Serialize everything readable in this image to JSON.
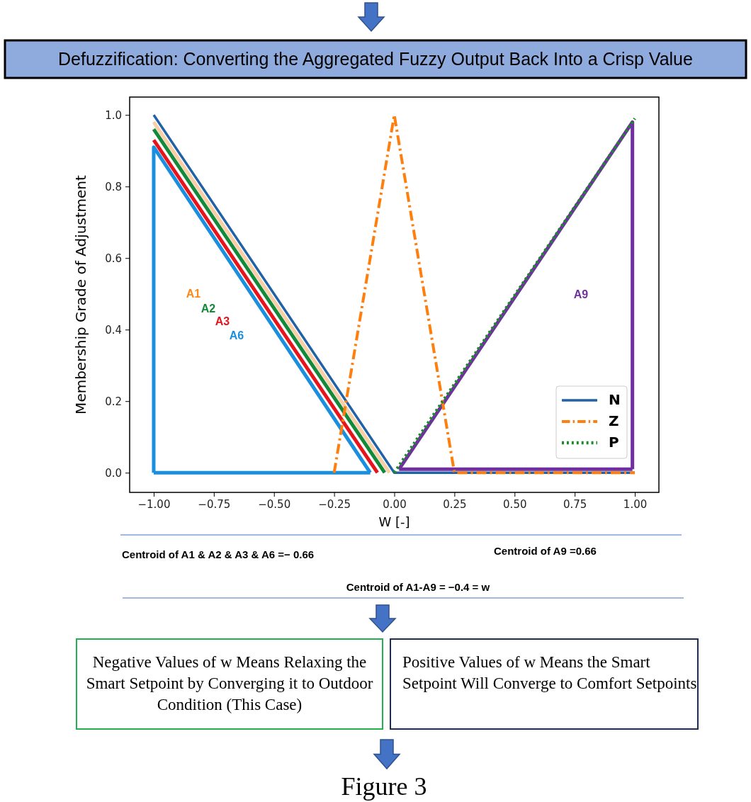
{
  "chart_data": {
    "type": "line",
    "title": "Defuzzification: Converting the Aggregated Fuzzy Output Back Into a Crisp Value",
    "xlabel": "W [-]",
    "ylabel": "Membership Grade of Adjustment",
    "xlim": [
      -1.1,
      1.1
    ],
    "ylim": [
      -0.055,
      1.05
    ],
    "xticks": [
      {
        "value": -1,
        "label": "−1.00"
      },
      {
        "value": -0.75,
        "label": "−0.75"
      },
      {
        "value": -0.5,
        "label": "−0.50"
      },
      {
        "value": -0.25,
        "label": "−0.25"
      },
      {
        "value": 0,
        "label": "0.00"
      },
      {
        "value": 0.25,
        "label": "0.25"
      },
      {
        "value": 0.5,
        "label": "0.50"
      },
      {
        "value": 0.75,
        "label": "0.75"
      },
      {
        "value": 1,
        "label": "1.00"
      }
    ],
    "yticks": [
      {
        "value": 0,
        "label": "0.0"
      },
      {
        "value": 0.2,
        "label": "0.2"
      },
      {
        "value": 0.4,
        "label": "0.4"
      },
      {
        "value": 0.6,
        "label": "0.6"
      },
      {
        "value": 0.8,
        "label": "0.8"
      },
      {
        "value": 1,
        "label": "1.0"
      }
    ],
    "grid": false,
    "legend": "bottom right",
    "marker": "none",
    "series": [
      {
        "color": "#f9cfa8",
        "line_style": "solid",
        "x": [
          -1,
          -0.02
        ],
        "values": [
          0.98,
          0
        ]
      },
      {
        "color": "#128a3a",
        "line_style": "solid",
        "x": [
          -1,
          -0.04
        ],
        "values": [
          0.96,
          0
        ]
      },
      {
        "color": "#e8141b",
        "line_style": "solid",
        "x": [
          -1,
          -0.07
        ],
        "values": [
          0.93,
          0
        ]
      },
      {
        "color": "#1a8fe0",
        "line_style": "solid",
        "x": [
          -1,
          -1,
          -0.1
        ],
        "values": [
          0,
          0.91,
          0
        ]
      },
      {
        "color": "#7030a0",
        "line_style": "solid",
        "x": [
          0.02,
          0.99,
          0.99
        ],
        "values": [
          0.01,
          0.98,
          0.01
        ]
      },
      {
        "color": "#1a8fe0",
        "line_style": "solid",
        "x": [
          -1,
          -0.1
        ],
        "values": [
          0,
          0
        ]
      },
      {
        "color": "#7030a0",
        "line_style": "solid",
        "x": [
          0.02,
          0.99
        ],
        "values": [
          0.01,
          0.01
        ]
      },
      {
        "name": "N",
        "color": "#1f62a8",
        "line_style": "solid",
        "x": [
          -1,
          0,
          1
        ],
        "values": [
          1,
          0,
          0
        ]
      },
      {
        "name": "Z",
        "color": "#ff7f0e",
        "line_style": "dashdot",
        "x": [
          -0.25,
          0,
          0.25,
          1
        ],
        "values": [
          0,
          1,
          0,
          0
        ]
      },
      {
        "name": "P",
        "color": "#1a8a2a",
        "line_style": "dotted",
        "x": [
          0,
          1
        ],
        "values": [
          0,
          0.99
        ]
      }
    ],
    "annotations": [
      "A1",
      "A2",
      "A3",
      "A6",
      "A9",
      "Centroid of A1 & A2 & A3 & A6 =− 0.66",
      "Centroid of A9 =0.66",
      "Centroid of A1-A9 = −0.4 = w",
      "Negative Values of w Means Relaxing the Smart Setpoint by Converging it to Outdoor Condition (This Case)",
      "Positive Values of w Means the Smart Setpoint Will Converge to Comfort Setpoints",
      "Figure 3"
    ]
  }
}
